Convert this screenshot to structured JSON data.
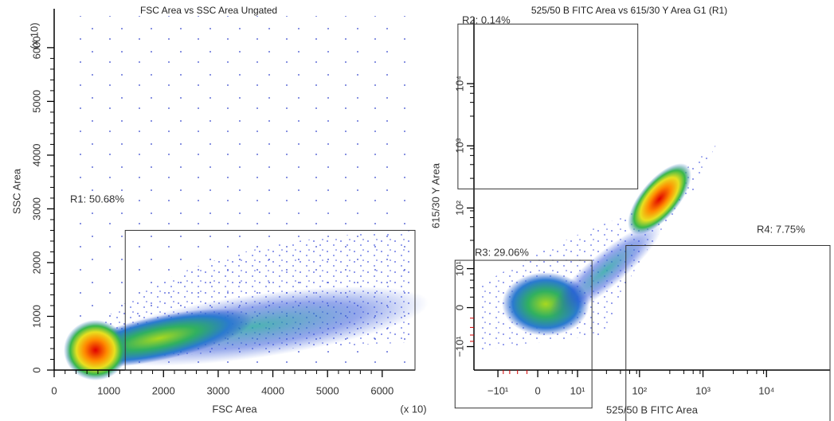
{
  "chart_data": [
    {
      "type": "scatter",
      "title": "FSC Area vs SSC Area  Ungated",
      "x_label": "FSC Area",
      "y_label": "SSC Area",
      "x_multiplier": "(x 10)",
      "y_multiplier": "(x 10)",
      "scale": "linear",
      "xlim": [
        0,
        6600
      ],
      "ylim": [
        0,
        6650
      ],
      "xticks": [
        0,
        1000,
        2000,
        3000,
        4000,
        5000,
        6000
      ],
      "yticks": [
        0,
        1000,
        2000,
        3000,
        4000,
        5000,
        6000
      ],
      "gates": [
        {
          "label": "R1: 50.68%",
          "x": [
            1300,
            6600
          ],
          "y": [
            0,
            2600
          ]
        }
      ]
    },
    {
      "type": "scatter",
      "title": "525/50 B FITC Area vs 615/30 Y Area  G1 (R1)",
      "x_label": "525/50 B FITC Area",
      "y_label": "615/30 Y Area",
      "scale": "biexponential",
      "negative_tick_color": "#d40000",
      "xlim": [
        -25,
        100000
      ],
      "ylim": [
        -25,
        100000
      ],
      "xticks": [
        {
          "value": -10,
          "label": "−10¹"
        },
        0,
        {
          "value": 10,
          "label": "10¹"
        },
        {
          "value": 100,
          "label": "10²"
        },
        {
          "value": 1000,
          "label": "10³"
        },
        {
          "value": 10000,
          "label": "10⁴"
        }
      ],
      "yticks": [
        {
          "value": -10,
          "label": "−10¹"
        },
        0,
        {
          "value": 10,
          "label": "10¹"
        },
        {
          "value": 100,
          "label": "10²"
        },
        {
          "value": 1000,
          "label": "10³"
        },
        {
          "value": 10000,
          "label": "10⁴"
        }
      ],
      "gates": [
        {
          "label": "R2: 0.14%",
          "x": [
            -45,
            94
          ],
          "y": [
            203,
            91000
          ]
        },
        {
          "label": "R3: 29.06%",
          "x": [
            -50,
            17.5
          ],
          "y": [
            -103,
            14
          ]
        },
        {
          "label": "R4: 7.75%",
          "x": [
            61,
            100000
          ],
          "y": [
            -170,
            24.7
          ]
        }
      ]
    }
  ]
}
